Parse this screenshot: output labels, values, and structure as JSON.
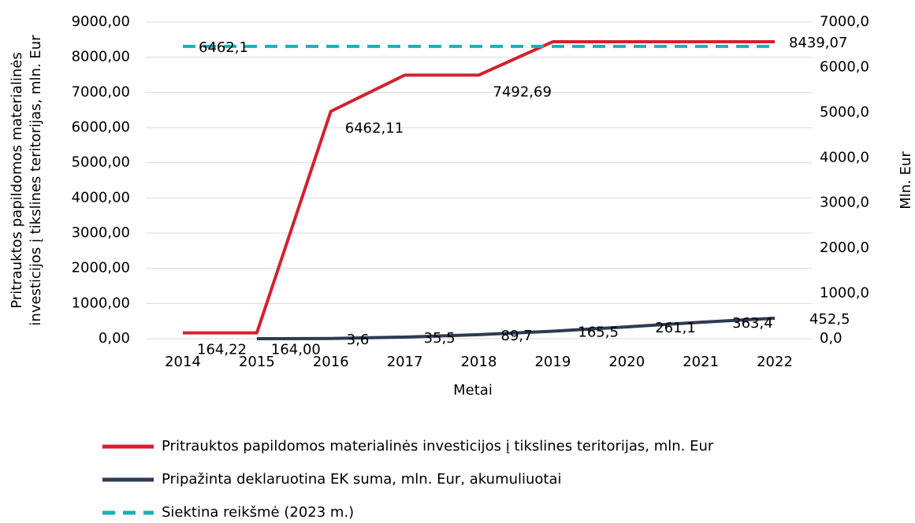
{
  "chart_data": {
    "type": "line",
    "ylabel": [
      "Pritrauktos papildomos materialinės",
      "investicijos į tikslines teritorijas, mln. Eur"
    ],
    "y2label": "Mln. Eur",
    "xlabel": "Metai",
    "categories": [
      "2014",
      "2015",
      "2016",
      "2017",
      "2018",
      "2019",
      "2020",
      "2021",
      "2022"
    ],
    "series": [
      {
        "name": "Pritrauktos papildomos materialinės investicijos į tikslines teritorijas, mln. Eur",
        "color": "#d3212d",
        "dash": false,
        "axis": "y",
        "values": [
          164.22,
          164.0,
          6462.11,
          7492.69,
          7492.69,
          8439.07,
          8439.07,
          8439.07,
          8439.07
        ],
        "value_labels": [
          "164,22",
          "164,00",
          "6462,11",
          null,
          "7492,69",
          null,
          null,
          null,
          "8439,07"
        ]
      },
      {
        "name": "Pripažinta deklaruotina EK suma, mln. Eur, akumuliuotai",
        "color": "#2e3a52",
        "dash": false,
        "axis": "y2",
        "values": [
          null,
          0,
          3.6,
          35.5,
          89.7,
          165.5,
          261.1,
          363.4,
          452.5
        ],
        "value_labels": [
          null,
          null,
          "3,6",
          "35,5",
          "89,7",
          "165,5",
          "261,1",
          "363,4",
          "452,5"
        ]
      },
      {
        "name": "Siektina reikšmė (2023 m.)",
        "color": "#1ab0b8",
        "dash": true,
        "axis": "y2",
        "values": [
          6462.1,
          6462.1,
          6462.1,
          6462.1,
          6462.1,
          6462.1,
          6462.1,
          6462.1,
          6462.1
        ],
        "value_labels": [
          "6462,1",
          null,
          null,
          null,
          null,
          null,
          null,
          null,
          null
        ]
      }
    ],
    "ylim": [
      0,
      9000
    ],
    "yticks": [
      {
        "value": 0,
        "label": "0,00"
      },
      {
        "value": 1000,
        "label": "1000,00"
      },
      {
        "value": 2000,
        "label": "2000,00"
      },
      {
        "value": 3000,
        "label": "3000,00"
      },
      {
        "value": 4000,
        "label": "4000,00"
      },
      {
        "value": 5000,
        "label": "5000,00"
      },
      {
        "value": 6000,
        "label": "6000,00"
      },
      {
        "value": 7000,
        "label": "7000,00"
      },
      {
        "value": 8000,
        "label": "8000,00"
      },
      {
        "value": 9000,
        "label": "9000,00"
      }
    ],
    "y2lim": [
      0,
      7000
    ],
    "y2ticks": [
      {
        "value": 0,
        "label": "0,0"
      },
      {
        "value": 1000,
        "label": "1000,0"
      },
      {
        "value": 2000,
        "label": "2000,0"
      },
      {
        "value": 3000,
        "label": "3000,0"
      },
      {
        "value": 4000,
        "label": "4000,0"
      },
      {
        "value": 5000,
        "label": "5000,0"
      },
      {
        "value": 6000,
        "label": "6000,0"
      },
      {
        "value": 7000,
        "label": "7000,0"
      }
    ],
    "grid": true,
    "legend_position": "bottom"
  }
}
